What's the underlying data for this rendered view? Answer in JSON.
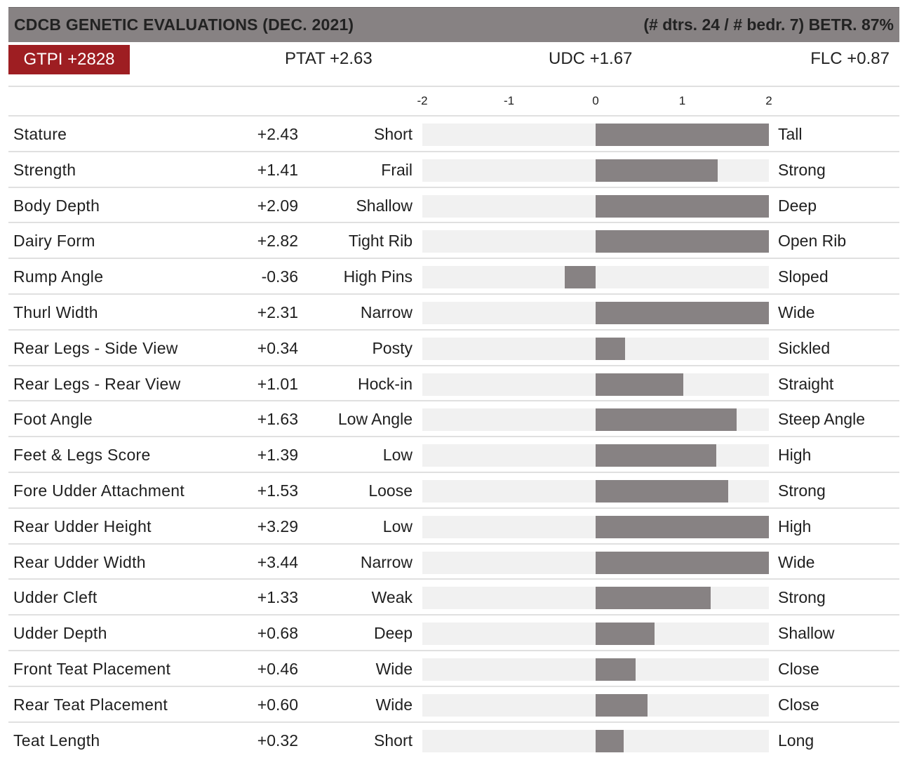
{
  "header": {
    "title": "CDCB GENETIC EVALUATIONS (DEC. 2021)",
    "meta": "(# dtrs. 24 / # bedr. 7) BETR. 87%"
  },
  "summary": {
    "gtpi": "GTPI +2828",
    "ptat": "PTAT +2.63",
    "udc": "UDC +1.67",
    "flc": "FLC +0.87"
  },
  "scale": {
    "ticks": [
      "-2",
      "-1",
      "0",
      "1",
      "2"
    ],
    "min": -2,
    "max": 2
  },
  "colors": {
    "header_bg": "#878283",
    "badge_bg": "#9e1e22",
    "bar": "#878283",
    "track": "#f1f1f1"
  },
  "traits": [
    {
      "name": "Stature",
      "value_label": "+2.43",
      "value": 2.43,
      "low": "Short",
      "high": "Tall"
    },
    {
      "name": "Strength",
      "value_label": "+1.41",
      "value": 1.41,
      "low": "Frail",
      "high": "Strong"
    },
    {
      "name": "Body Depth",
      "value_label": "+2.09",
      "value": 2.09,
      "low": "Shallow",
      "high": "Deep"
    },
    {
      "name": "Dairy Form",
      "value_label": "+2.82",
      "value": 2.82,
      "low": "Tight Rib",
      "high": "Open Rib"
    },
    {
      "name": "Rump Angle",
      "value_label": "-0.36",
      "value": -0.36,
      "low": "High Pins",
      "high": "Sloped"
    },
    {
      "name": "Thurl Width",
      "value_label": "+2.31",
      "value": 2.31,
      "low": "Narrow",
      "high": "Wide"
    },
    {
      "name": "Rear Legs - Side View",
      "value_label": "+0.34",
      "value": 0.34,
      "low": "Posty",
      "high": "Sickled"
    },
    {
      "name": "Rear Legs - Rear View",
      "value_label": "+1.01",
      "value": 1.01,
      "low": "Hock-in",
      "high": "Straight"
    },
    {
      "name": "Foot Angle",
      "value_label": "+1.63",
      "value": 1.63,
      "low": "Low Angle",
      "high": "Steep Angle"
    },
    {
      "name": "Feet & Legs Score",
      "value_label": "+1.39",
      "value": 1.39,
      "low": "Low",
      "high": "High"
    },
    {
      "name": "Fore Udder Attachment",
      "value_label": "+1.53",
      "value": 1.53,
      "low": "Loose",
      "high": "Strong"
    },
    {
      "name": "Rear Udder Height",
      "value_label": "+3.29",
      "value": 3.29,
      "low": "Low",
      "high": "High"
    },
    {
      "name": "Rear Udder Width",
      "value_label": "+3.44",
      "value": 3.44,
      "low": "Narrow",
      "high": "Wide"
    },
    {
      "name": "Udder Cleft",
      "value_label": "+1.33",
      "value": 1.33,
      "low": "Weak",
      "high": "Strong"
    },
    {
      "name": "Udder Depth",
      "value_label": "+0.68",
      "value": 0.68,
      "low": "Deep",
      "high": "Shallow"
    },
    {
      "name": "Front Teat Placement",
      "value_label": "+0.46",
      "value": 0.46,
      "low": "Wide",
      "high": "Close"
    },
    {
      "name": "Rear Teat Placement",
      "value_label": "+0.60",
      "value": 0.6,
      "low": "Wide",
      "high": "Close"
    },
    {
      "name": "Teat Length",
      "value_label": "+0.32",
      "value": 0.32,
      "low": "Short",
      "high": "Long"
    }
  ]
}
